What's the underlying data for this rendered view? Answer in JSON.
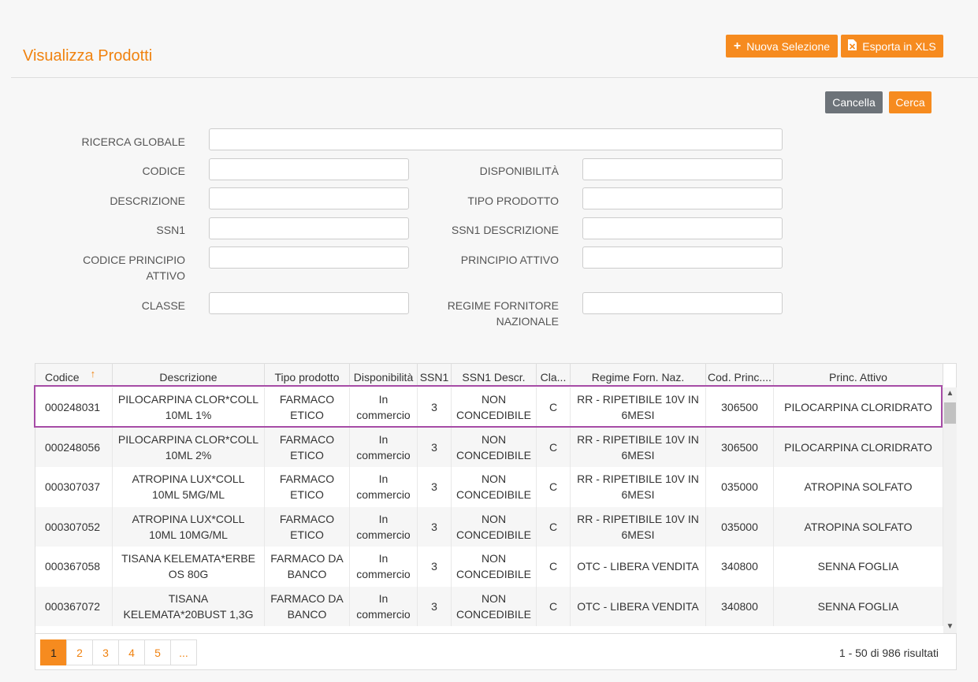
{
  "header": {
    "title": "Visualizza Prodotti",
    "new_selection_label": "Nuova Selezione",
    "export_label": "Esporta in XLS"
  },
  "actions": {
    "cancel_label": "Cancella",
    "search_label": "Cerca"
  },
  "filters": {
    "global_search": "RICERCA GLOBALE",
    "codice": "CODICE",
    "disponibilita": "DISPONIBILITÀ",
    "descrizione": "DESCRIZIONE",
    "tipo_prodotto": "TIPO PRODOTTO",
    "ssn1": "SSN1",
    "ssn1_descrizione": "SSN1 DESCRIZIONE",
    "codice_principio_1": "CODICE PRINCIPIO",
    "codice_principio_2": "ATTIVO",
    "principio_attivo": "PRINCIPIO ATTIVO",
    "classe": "CLASSE",
    "regime_1": "REGIME FORNITORE",
    "regime_2": "NAZIONALE"
  },
  "table": {
    "columns": [
      "Codice",
      "Descrizione",
      "Tipo prodotto",
      "Disponibilità",
      "SSN1",
      "SSN1 Descr.",
      "Cla...",
      "Regime Forn. Naz.",
      "Cod. Princ....",
      "Princ. Attivo"
    ],
    "rows": [
      [
        "000248031",
        "PILOCARPINA CLOR*COLL 10ML 1%",
        "FARMACO ETICO",
        "In commercio",
        "3",
        "NON CONCEDIBILE",
        "C",
        "RR - RIPETIBILE 10V IN 6MESI",
        "306500",
        "PILOCARPINA CLORIDRATO"
      ],
      [
        "000248056",
        "PILOCARPINA CLOR*COLL 10ML 2%",
        "FARMACO ETICO",
        "In commercio",
        "3",
        "NON CONCEDIBILE",
        "C",
        "RR - RIPETIBILE 10V IN 6MESI",
        "306500",
        "PILOCARPINA CLORIDRATO"
      ],
      [
        "000307037",
        "ATROPINA LUX*COLL 10ML 5MG/ML",
        "FARMACO ETICO",
        "In commercio",
        "3",
        "NON CONCEDIBILE",
        "C",
        "RR - RIPETIBILE 10V IN 6MESI",
        "035000",
        "ATROPINA SOLFATO"
      ],
      [
        "000307052",
        "ATROPINA LUX*COLL 10ML 10MG/ML",
        "FARMACO ETICO",
        "In commercio",
        "3",
        "NON CONCEDIBILE",
        "C",
        "RR - RIPETIBILE 10V IN 6MESI",
        "035000",
        "ATROPINA SOLFATO"
      ],
      [
        "000367058",
        "TISANA KELEMATA*ERBE OS 80G",
        "FARMACO DA BANCO",
        "In commercio",
        "3",
        "NON CONCEDIBILE",
        "C",
        "OTC - LIBERA VENDITA",
        "340800",
        "SENNA FOGLIA"
      ],
      [
        "000367072",
        "TISANA KELEMATA*20BUST 1,3G",
        "FARMACO DA BANCO",
        "In commercio",
        "3",
        "NON CONCEDIBILE",
        "C",
        "OTC - LIBERA VENDITA",
        "340800",
        "SENNA FOGLIA"
      ]
    ]
  },
  "pager": {
    "pages": [
      "1",
      "2",
      "3",
      "4",
      "5",
      "..."
    ],
    "info": "1 - 50 di 986 risultati"
  },
  "colors": {
    "accent": "#f68b1f",
    "selection_outline": "#a64ca6"
  },
  "icons": {
    "new": "plus-icon",
    "export": "file-excel-icon",
    "sort": "sort-asc-icon"
  }
}
